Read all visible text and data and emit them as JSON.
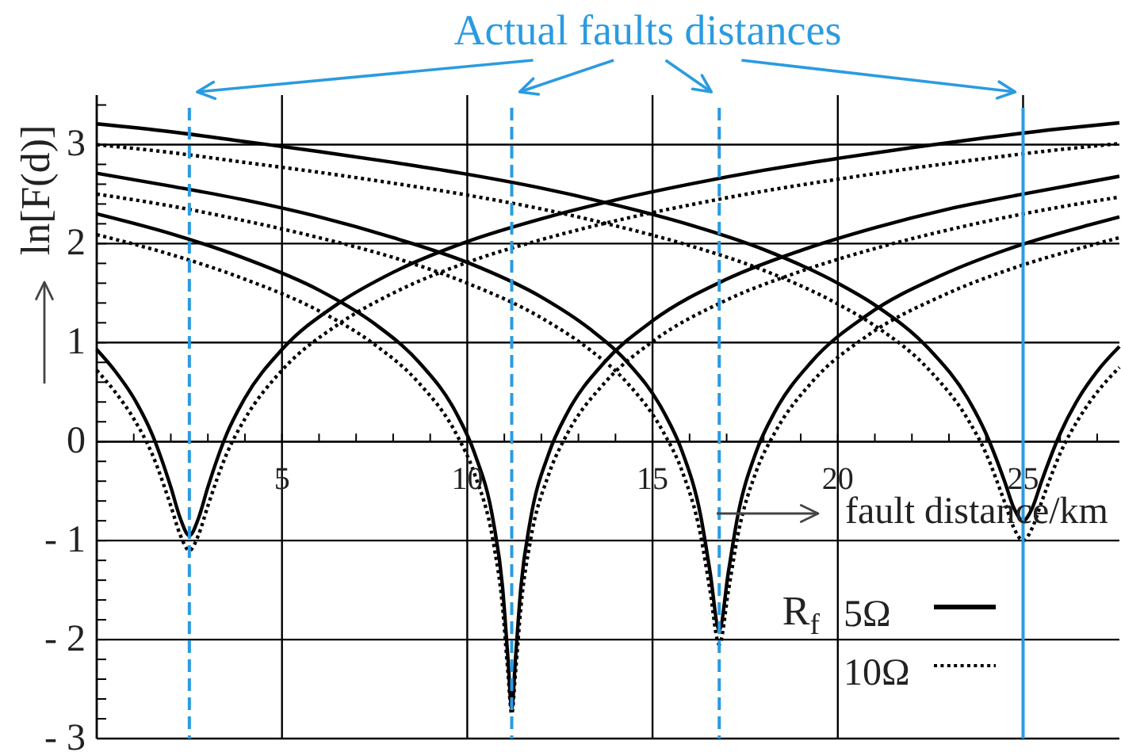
{
  "chart_data": {
    "type": "line",
    "xlabel": "fault distance/km",
    "ylabel": "ln[F(d)]",
    "legend_title": "R$_{f}$",
    "annotations": [
      "Actual faults distances"
    ],
    "xlim": [
      0,
      27.6
    ],
    "ylim": [
      -3,
      3.5
    ],
    "xticks": [
      {
        "value": 1,
        "label": null
      },
      {
        "value": 2,
        "label": null
      },
      {
        "value": 3,
        "label": null
      },
      {
        "value": 4,
        "label": null
      },
      5,
      {
        "value": 6,
        "label": null
      },
      {
        "value": 7,
        "label": null
      },
      {
        "value": 8,
        "label": null
      },
      {
        "value": 9,
        "label": null
      },
      10,
      {
        "value": 11,
        "label": null
      },
      {
        "value": 12,
        "label": null
      },
      {
        "value": 13,
        "label": null
      },
      {
        "value": 14,
        "label": null
      },
      15,
      {
        "value": 16,
        "label": null
      },
      {
        "value": 17,
        "label": null
      },
      {
        "value": 18,
        "label": null
      },
      {
        "value": 19,
        "label": null
      },
      20,
      {
        "value": 21,
        "label": null
      },
      {
        "value": 22,
        "label": null
      },
      {
        "value": 23,
        "label": null
      },
      {
        "value": 24,
        "label": null
      },
      25,
      {
        "value": 26,
        "label": null
      },
      {
        "value": 27,
        "label": null
      }
    ],
    "yticks": [
      {
        "value": -3,
        "label": "- 3"
      },
      {
        "value": -2.8,
        "label": null
      },
      {
        "value": -2.6,
        "label": null
      },
      {
        "value": -2.4,
        "label": null
      },
      {
        "value": -2.2,
        "label": null
      },
      {
        "value": -2,
        "label": "- 2"
      },
      {
        "value": -1.8,
        "label": null
      },
      {
        "value": -1.6,
        "label": null
      },
      {
        "value": -1.4,
        "label": null
      },
      {
        "value": -1.2,
        "label": null
      },
      {
        "value": -1,
        "label": "- 1"
      },
      {
        "value": -0.8,
        "label": null
      },
      {
        "value": -0.6,
        "label": null
      },
      {
        "value": -0.4,
        "label": null
      },
      {
        "value": -0.2,
        "label": null
      },
      0,
      {
        "value": 0.2,
        "label": null
      },
      {
        "value": 0.4,
        "label": null
      },
      {
        "value": 0.6,
        "label": null
      },
      {
        "value": 0.8,
        "label": null
      },
      1,
      {
        "value": 1.2,
        "label": null
      },
      {
        "value": 1.4,
        "label": null
      },
      {
        "value": 1.6,
        "label": null
      },
      {
        "value": 1.8,
        "label": null
      },
      2,
      {
        "value": 2.2,
        "label": null
      },
      {
        "value": 2.4,
        "label": null
      },
      {
        "value": 2.6,
        "label": null
      },
      {
        "value": 2.8,
        "label": null
      },
      3,
      {
        "value": 3.2,
        "label": null
      },
      {
        "value": 3.4,
        "label": null
      }
    ],
    "grid": true,
    "legend": "bottom right",
    "series": [
      {
        "name": "5Ω",
        "color": "#000000",
        "line_style": "solid",
        "x": [
          0,
          0.5,
          1,
          1.5,
          2,
          2.25,
          2.5,
          2.75,
          3,
          3.5,
          4,
          5,
          6.5,
          8,
          10,
          12,
          14,
          16,
          18,
          20,
          22,
          24,
          26,
          27.6
        ],
        "values": [
          0.93,
          0.71,
          0.44,
          0.07,
          -0.46,
          -0.77,
          -0.95,
          -0.77,
          -0.46,
          0.07,
          0.44,
          0.93,
          1.39,
          1.71,
          2.02,
          2.25,
          2.44,
          2.6,
          2.74,
          2.86,
          2.97,
          3.07,
          3.16,
          3.22
        ]
      },
      {
        "name": "10Ω",
        "color": "#000000",
        "line_style": "dotted",
        "x": [
          0,
          0.5,
          1,
          1.5,
          2,
          2.25,
          2.5,
          2.75,
          3,
          3.5,
          4,
          5,
          6.5,
          8,
          10,
          12,
          14,
          16,
          18,
          20,
          22,
          24,
          26,
          27.6
        ],
        "values": [
          0.72,
          0.5,
          0.23,
          -0.13,
          -0.65,
          -0.94,
          -1.1,
          -0.94,
          -0.65,
          -0.13,
          0.23,
          0.72,
          1.18,
          1.5,
          1.81,
          2.04,
          2.23,
          2.39,
          2.53,
          2.65,
          2.76,
          2.86,
          2.95,
          3.01
        ]
      },
      {
        "color": "#000000",
        "line_style": "solid",
        "x": [
          0,
          2,
          4,
          6,
          7.5,
          8.7,
          9.7,
          10.2,
          10.7,
          10.95,
          11.1,
          11.2,
          11.3,
          11.45,
          11.7,
          12.2,
          12.7,
          13.7,
          15,
          17,
          19,
          21,
          23,
          25,
          27.6
        ],
        "values": [
          2.3,
          2.1,
          1.85,
          1.53,
          1.19,
          0.8,
          0.29,
          -0.12,
          -0.8,
          -1.46,
          -2.2,
          -2.7,
          -2.2,
          -1.46,
          -0.8,
          -0.12,
          0.29,
          0.8,
          1.22,
          1.64,
          1.93,
          2.16,
          2.35,
          2.5,
          2.68
        ]
      },
      {
        "color": "#000000",
        "line_style": "dotted",
        "x": [
          0,
          2,
          4,
          6,
          7.5,
          8.7,
          9.7,
          10.2,
          10.7,
          10.95,
          11.1,
          11.2,
          11.3,
          11.45,
          11.7,
          12.2,
          12.7,
          13.7,
          15,
          17,
          19,
          21,
          23,
          25,
          27.6
        ],
        "values": [
          2.09,
          1.89,
          1.64,
          1.32,
          0.98,
          0.59,
          0.08,
          -0.33,
          -1.01,
          -1.66,
          -2.34,
          -2.75,
          -2.34,
          -1.66,
          -1.01,
          -0.33,
          0.08,
          0.59,
          1.01,
          1.43,
          1.72,
          1.95,
          2.14,
          2.3,
          2.47
        ]
      },
      {
        "color": "#000000",
        "line_style": "solid",
        "x": [
          0,
          2,
          4,
          6,
          8,
          10,
          12,
          13.3,
          14.3,
          15.3,
          15.8,
          16.3,
          16.55,
          16.8,
          17.05,
          17.3,
          17.8,
          18.3,
          19.3,
          20.8,
          22.8,
          24.8,
          26.8,
          27.6
        ],
        "values": [
          2.71,
          2.58,
          2.44,
          2.27,
          2.06,
          1.81,
          1.46,
          1.14,
          0.81,
          0.3,
          -0.1,
          -0.75,
          -1.31,
          -1.9,
          -1.31,
          -0.75,
          -0.1,
          0.3,
          0.81,
          1.28,
          1.68,
          1.97,
          2.19,
          2.27
        ]
      },
      {
        "color": "#000000",
        "line_style": "dotted",
        "x": [
          0,
          2,
          4,
          6,
          8,
          10,
          12,
          13.3,
          14.3,
          15.3,
          15.8,
          16.3,
          16.55,
          16.8,
          17.05,
          17.3,
          17.8,
          18.3,
          19.3,
          20.8,
          22.8,
          24.8,
          26.8,
          27.6
        ],
        "values": [
          2.5,
          2.38,
          2.23,
          2.06,
          1.86,
          1.6,
          1.25,
          0.93,
          0.6,
          0.09,
          -0.3,
          -0.95,
          -1.5,
          -2.05,
          -1.5,
          -0.95,
          -0.3,
          0.09,
          0.6,
          1.07,
          1.47,
          1.76,
          1.98,
          2.06
        ]
      },
      {
        "color": "#000000",
        "line_style": "solid",
        "x": [
          0,
          2,
          4,
          6,
          8,
          10,
          12,
          14,
          16,
          18,
          20,
          21,
          22.5,
          23.5,
          24,
          24.5,
          24.75,
          25,
          25.25,
          25.5,
          26,
          26.5,
          27,
          27.6
        ],
        "values": [
          3.21,
          3.13,
          3.03,
          2.93,
          2.82,
          2.7,
          2.56,
          2.39,
          2.19,
          1.94,
          1.6,
          1.38,
          0.92,
          0.44,
          0.08,
          -0.4,
          -0.67,
          -0.8,
          -0.67,
          -0.4,
          0.08,
          0.44,
          0.71,
          0.96
        ]
      },
      {
        "color": "#000000",
        "line_style": "dotted",
        "x": [
          0,
          2,
          4,
          6,
          8,
          10,
          12,
          14,
          16,
          18,
          20,
          21,
          22.5,
          23.5,
          24,
          24.5,
          24.75,
          25,
          25.25,
          25.5,
          26,
          26.5,
          27,
          27.6
        ],
        "values": [
          3.0,
          2.92,
          2.82,
          2.72,
          2.61,
          2.49,
          2.35,
          2.18,
          1.98,
          1.73,
          1.39,
          1.17,
          0.71,
          0.23,
          -0.12,
          -0.61,
          -0.87,
          -1.0,
          -0.87,
          -0.61,
          -0.12,
          0.23,
          0.5,
          0.75
        ]
      }
    ],
    "ref_lines": [
      {
        "axis": "x",
        "value": 2.5,
        "color": "#2b9be0",
        "line_style": "dashed"
      },
      {
        "axis": "x",
        "value": 11.2,
        "color": "#2b9be0",
        "line_style": "dashed"
      },
      {
        "axis": "x",
        "value": 16.8,
        "color": "#2b9be0",
        "line_style": "dashed"
      },
      {
        "axis": "x",
        "value": 25,
        "color": "#2b9be0",
        "line_style": "solid"
      }
    ]
  }
}
